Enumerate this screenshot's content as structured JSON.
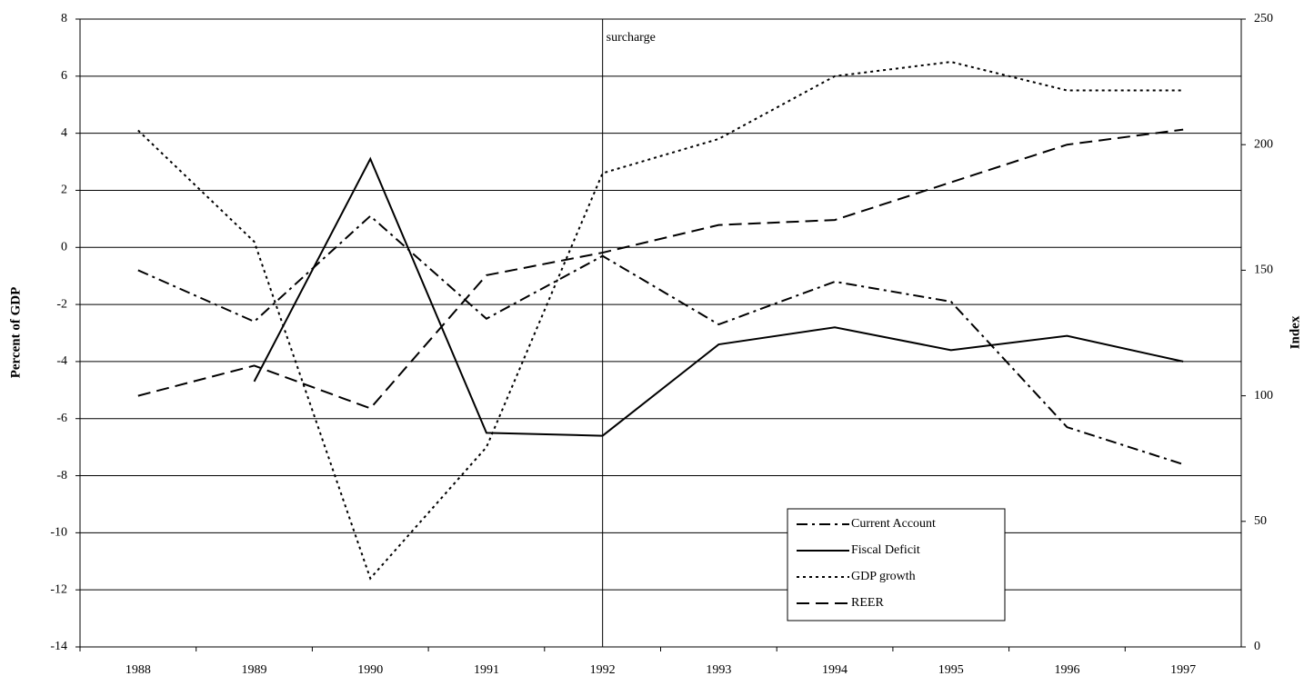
{
  "chart_data": {
    "type": "line",
    "y_label": "Percent of GDP",
    "y2_label": "Index",
    "categories": [
      "1988",
      "1989",
      "1990",
      "1991",
      "1992",
      "1993",
      "1994",
      "1995",
      "1996",
      "1997"
    ],
    "ylim": [
      -14,
      8
    ],
    "yticks": [
      -14,
      -12,
      -10,
      -8,
      -6,
      -4,
      -2,
      0,
      2,
      4,
      6,
      8
    ],
    "y2lim": [
      0,
      250
    ],
    "y2ticks": [
      0,
      50,
      100,
      150,
      200,
      250
    ],
    "grid": true,
    "legend": "bottom-right",
    "annotation": {
      "text": "surcharge",
      "x": "1992"
    },
    "series": [
      {
        "name": "Current Account",
        "color": "#000000",
        "style": "dash-dot",
        "values": [
          -0.8,
          -2.6,
          1.1,
          -2.5,
          -0.3,
          -2.7,
          -1.2,
          -1.9,
          -6.3,
          -7.6
        ]
      },
      {
        "name": "Fiscal Deficit",
        "color": "#000000",
        "style": "solid",
        "values": [
          null,
          -4.7,
          3.1,
          -6.5,
          -6.6,
          -3.4,
          -2.8,
          -3.6,
          -3.1,
          -4.0
        ]
      },
      {
        "name": "GDP growth",
        "color": "#000000",
        "style": "dot",
        "values": [
          4.1,
          0.2,
          -11.6,
          -7.0,
          2.6,
          3.8,
          6.0,
          6.5,
          5.5,
          5.5
        ]
      },
      {
        "name": "REER",
        "color": "#000000",
        "style": "dash",
        "axis": "y2",
        "values": [
          100,
          112,
          95,
          148,
          157,
          168,
          170,
          185,
          200,
          206
        ]
      }
    ]
  }
}
